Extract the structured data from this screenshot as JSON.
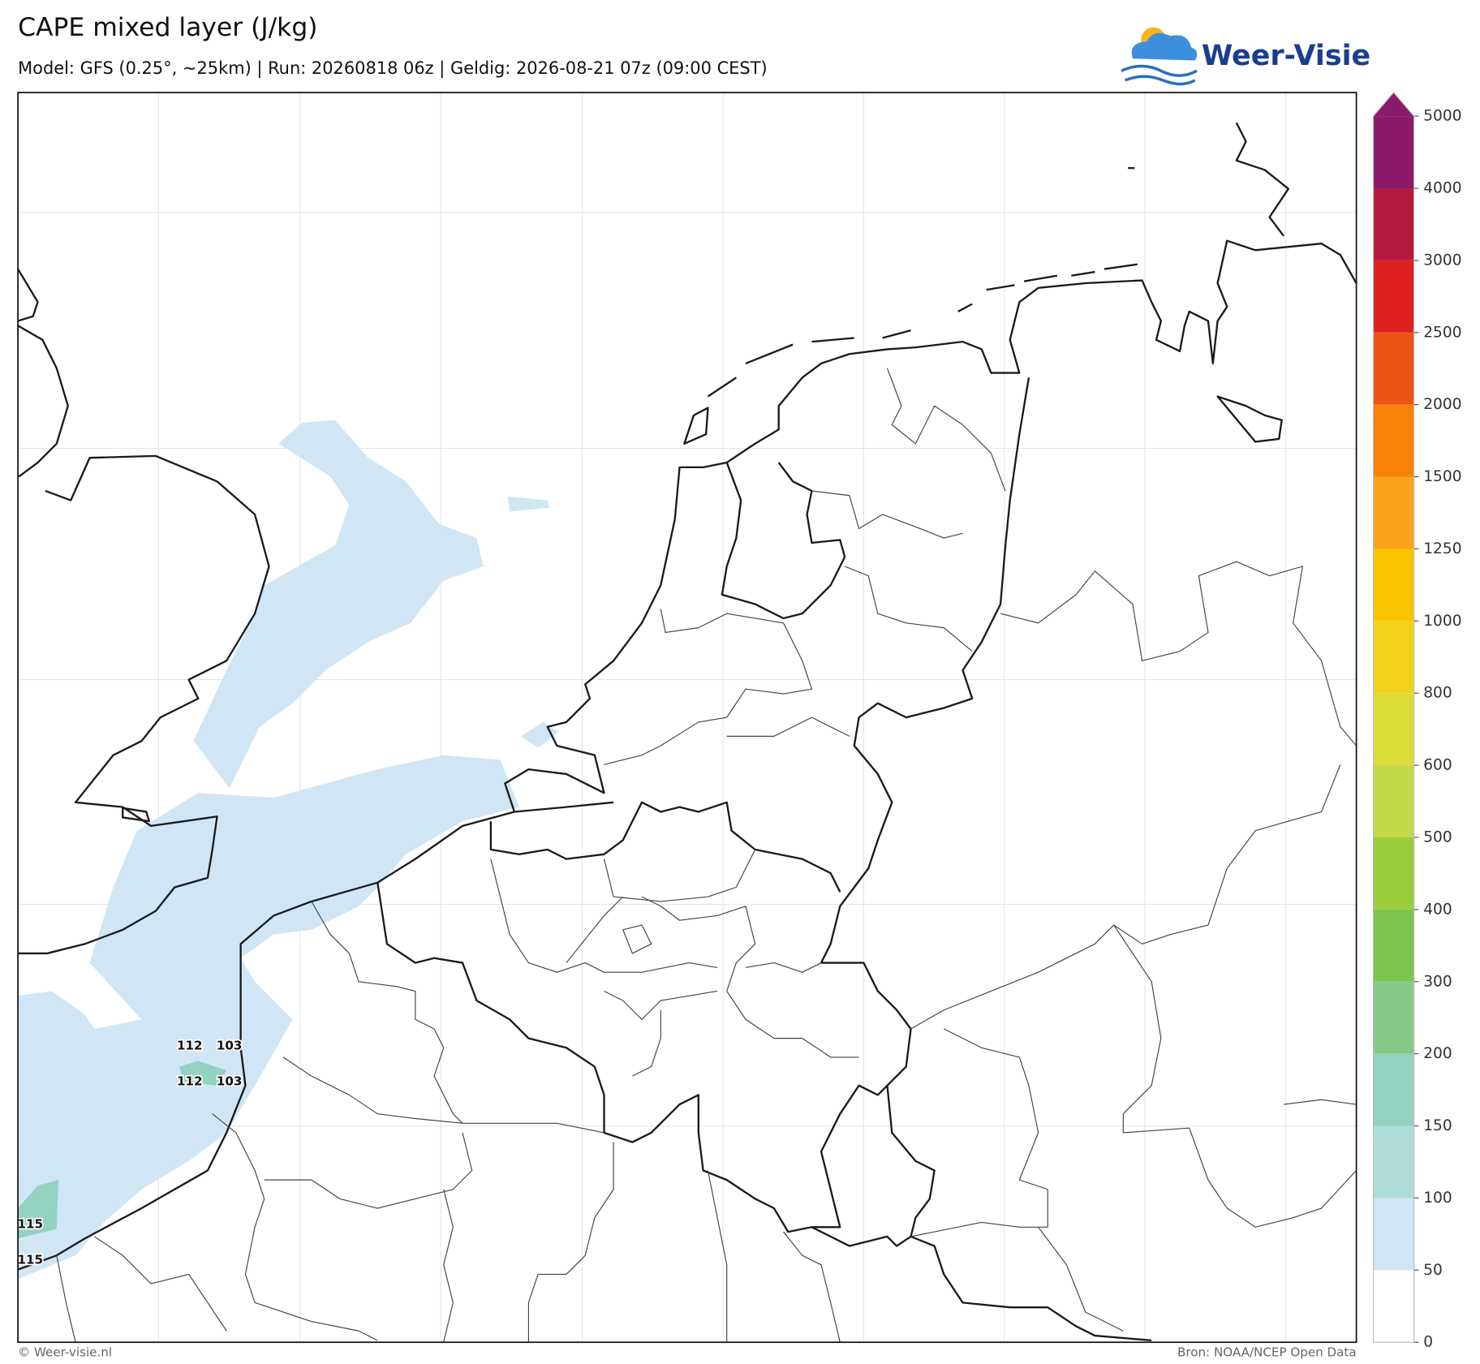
{
  "header": {
    "title": "CAPE mixed layer (J/kg)",
    "subtitle": "Model: GFS (0.25°, ~25km)  |  Run: 20260818 06z  |  Geldig: 2026-08-21 07z (09:00 CEST)",
    "logo": "Weer-Visie"
  },
  "map": {
    "point_labels": [
      112,
      103,
      112,
      103,
      115,
      115
    ]
  },
  "colorbar": {
    "ticks": [
      0,
      50,
      100,
      150,
      200,
      300,
      400,
      500,
      600,
      800,
      1000,
      1250,
      1500,
      2000,
      2500,
      3000,
      4000,
      5000
    ],
    "colors": [
      "#ffffff",
      "#d0e6f5",
      "#b0dcd8",
      "#93d1c0",
      "#87c987",
      "#7cc44e",
      "#9acd3c",
      "#c3d94a",
      "#dddd3a",
      "#f2d31a",
      "#fbc400",
      "#fba31c",
      "#f7820a",
      "#ec5414",
      "#df2020",
      "#b51a3c",
      "#8b1a6b"
    ]
  },
  "footer": {
    "left": "© Weer-visie.nl",
    "right": "Bron: NOAA/NCEP Open Data"
  }
}
